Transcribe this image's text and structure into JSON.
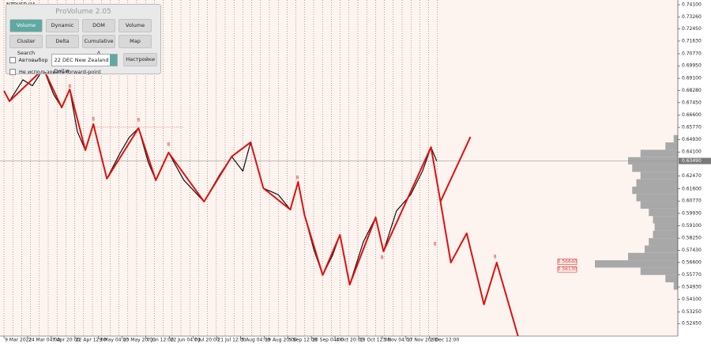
{
  "window": {
    "symbol": "NZDUSD,H4"
  },
  "panel": {
    "title": "ProVolume 2.05",
    "buttons": [
      "Volume Profile",
      "Dynamic POC",
      "DOM",
      "Volume",
      "Cluster Search",
      "Delta",
      "Cumulative Δ",
      "Map"
    ],
    "auto_label": "Автовыбор",
    "instrument": "22 DEC New Zealand Dollar",
    "settings": "Настройки",
    "forward_label": "Не использовать forward-point"
  },
  "chart": {
    "ylim": [
      0.516,
      0.7442
    ],
    "xlim": [
      -0.17,
      28.5
    ],
    "price_ticks": [
      {
        "value": 0.741,
        "label": "0.74100"
      },
      {
        "value": 0.7326,
        "label": "0.73260"
      },
      {
        "value": 0.7245,
        "label": "0.72450"
      },
      {
        "value": 0.7163,
        "label": "0.71630"
      },
      {
        "value": 0.7077,
        "label": "0.70770"
      },
      {
        "value": 0.6995,
        "label": "0.69950"
      },
      {
        "value": 0.691,
        "label": "0.69100"
      },
      {
        "value": 0.6828,
        "label": "0.68280"
      },
      {
        "value": 0.6745,
        "label": "0.67450"
      },
      {
        "value": 0.666,
        "label": "0.66600"
      },
      {
        "value": 0.6577,
        "label": "0.65770"
      },
      {
        "value": 0.6493,
        "label": "0.64930"
      },
      {
        "value": 0.641,
        "label": "0.64100"
      },
      {
        "value": 0.6247,
        "label": "0.62470"
      },
      {
        "value": 0.616,
        "label": "0.61600"
      },
      {
        "value": 0.6077,
        "label": "0.60770"
      },
      {
        "value": 0.5993,
        "label": "0.59930"
      },
      {
        "value": 0.591,
        "label": "0.59100"
      },
      {
        "value": 0.5825,
        "label": "0.58250"
      },
      {
        "value": 0.5743,
        "label": "0.57430"
      },
      {
        "value": 0.566,
        "label": "0.56600"
      },
      {
        "value": 0.5577,
        "label": "0.55770"
      },
      {
        "value": 0.5493,
        "label": "0.54930"
      },
      {
        "value": 0.541,
        "label": "0.54100"
      },
      {
        "value": 0.5325,
        "label": "0.53250"
      },
      {
        "value": 0.5245,
        "label": "0.52450"
      }
    ],
    "current_price": {
      "value": 0.6349,
      "label": "0.63490"
    },
    "dates": [
      "9 Mar 2022",
      "24 Mar 04:00",
      "7 Apr 20:00",
      "22 Apr 12:00",
      "9 May 04:00",
      "23 May 20:00",
      "7 Jun 12:00",
      "22 Jun 04:00",
      "7 Jul 20:00",
      "21 Jul 12:00",
      "5 Aug 04:00",
      "19 Aug 20:00",
      "5 Sep 12:00",
      "20 Sep 04:00",
      "4 Oct 20:00",
      "19 Oct 12:00",
      "3 Nov 04:00",
      "17 Nov 20:00",
      "2 Dec 12:00"
    ],
    "price": {
      "x": [
        0,
        0.23,
        0.8,
        1.2,
        1.67,
        2.1,
        2.44,
        2.78,
        3.1,
        3.44,
        3.78,
        4.35,
        4.9,
        5.3,
        5.69,
        6.1,
        6.42,
        6.96,
        7.6,
        8.46,
        9.1,
        9.63,
        10.1,
        10.43,
        10.97,
        11.6,
        12.11,
        12.44,
        12.71,
        13.1,
        13.48,
        13.9,
        14.21,
        14.62,
        15.2,
        15.72,
        16.05,
        16.6,
        17.2,
        17.7,
        18.06,
        18.3
      ],
      "y": [
        0.6825,
        0.6755,
        0.69,
        0.686,
        0.6975,
        0.68,
        0.6712,
        0.6835,
        0.655,
        0.6422,
        0.6599,
        0.6229,
        0.64,
        0.651,
        0.6572,
        0.634,
        0.6218,
        0.6406,
        0.622,
        0.6073,
        0.625,
        0.6379,
        0.628,
        0.6476,
        0.6164,
        0.612,
        0.6019,
        0.6207,
        0.5982,
        0.575,
        0.5574,
        0.571,
        0.5847,
        0.5509,
        0.58,
        0.5966,
        0.5735,
        0.601,
        0.612,
        0.628,
        0.6443,
        0.6349
      ]
    },
    "zigzag": {
      "x": [
        0,
        0.23,
        1.67,
        2.44,
        2.78,
        3.44,
        3.78,
        4.35,
        5.69,
        6.42,
        6.96,
        8.46,
        9.63,
        10.43,
        10.97,
        12.11,
        12.44,
        12.71,
        13.48,
        14.21,
        14.62,
        15.72,
        16.05,
        18.06,
        18.46
      ],
      "y": [
        0.6825,
        0.6755,
        0.6975,
        0.6712,
        0.6835,
        0.6422,
        0.6599,
        0.6229,
        0.6572,
        0.6218,
        0.6406,
        0.6073,
        0.6379,
        0.6476,
        0.6164,
        0.6019,
        0.6207,
        0.5982,
        0.5574,
        0.5847,
        0.5509,
        0.5966,
        0.5735,
        0.6443,
        0.6073
      ]
    },
    "forecast_up": {
      "x": [
        18.46,
        19.73
      ],
      "y": [
        0.6073,
        0.6513
      ]
    },
    "forecast_down": {
      "x": [
        18.46,
        18.9,
        19.57,
        20.3,
        20.84,
        21.74
      ],
      "y": [
        0.6073,
        0.5659,
        0.5858,
        0.5375,
        0.5659,
        0.516
      ]
    },
    "labels": [
      {
        "text": "8",
        "x": 2.78,
        "y": 0.6853
      },
      {
        "text": "8",
        "x": 3.78,
        "y": 0.6631
      },
      {
        "text": "8",
        "x": 5.69,
        "y": 0.6626
      },
      {
        "text": "8",
        "x": 6.96,
        "y": 0.6459
      },
      {
        "text": "8",
        "x": 12.41,
        "y": 0.6234
      },
      {
        "text": "8",
        "x": 15.99,
        "y": 0.5692
      },
      {
        "text": "8",
        "x": 18.23,
        "y": 0.5782
      },
      {
        "text": "8",
        "x": 20.77,
        "y": 0.5697
      }
    ],
    "level_line": {
      "price": 0.6578,
      "x": [
        3.78,
        7.6
      ]
    },
    "level_boxes": [
      {
        "value": 0.5664,
        "label": "0.56640"
      },
      {
        "value": 0.5613,
        "label": "0.56130"
      }
    ],
    "volume_profile": {
      "prices": [
        0.55,
        0.555,
        0.56,
        0.565,
        0.57,
        0.575,
        0.58,
        0.585,
        0.59,
        0.595,
        0.6,
        0.605,
        0.61,
        0.615,
        0.62,
        0.625,
        0.63,
        0.635,
        0.64,
        0.645,
        0.65
      ],
      "volumes": [
        5,
        15,
        45,
        100,
        60,
        40,
        35,
        30,
        28,
        30,
        35,
        45,
        50,
        55,
        50,
        45,
        55,
        60,
        45,
        15,
        5
      ]
    }
  }
}
